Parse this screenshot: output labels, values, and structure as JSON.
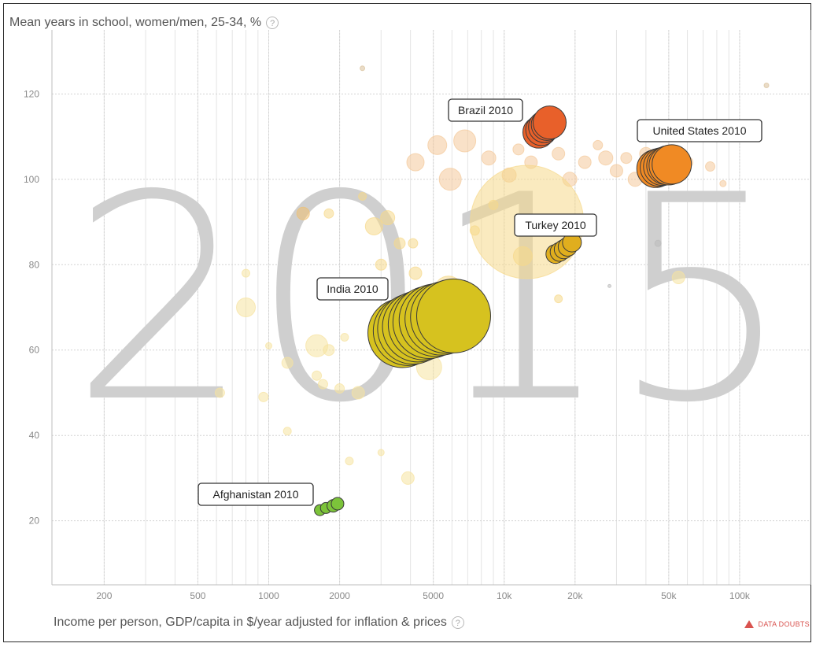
{
  "ui": {
    "y_title": "Mean years in school, women/men, 25-34, %",
    "x_title": "Income per person, GDP/capita in $/year adjusted for inflation & prices",
    "help_glyph": "?",
    "data_doubts": "DATA DOUBTS",
    "year": "2015"
  },
  "chart_data": {
    "type": "scatter",
    "xlabel": "Income per person, GDP/capita in $/year adjusted for inflation & prices",
    "ylabel": "Mean years in school, women/men, 25-34, %",
    "x_scale": "log",
    "xlim": [
      120,
      200000
    ],
    "ylim": [
      5,
      135
    ],
    "x_ticks": [
      {
        "value": 200,
        "label": "200"
      },
      {
        "value": 500,
        "label": "500"
      },
      {
        "value": 1000,
        "label": "1000"
      },
      {
        "value": 2000,
        "label": "2000"
      },
      {
        "value": 5000,
        "label": "5000"
      },
      {
        "value": 10000,
        "label": "10k"
      },
      {
        "value": 20000,
        "label": "20k"
      },
      {
        "value": 50000,
        "label": "50k"
      },
      {
        "value": 100000,
        "label": "100k"
      }
    ],
    "y_ticks": [
      {
        "value": 20,
        "label": "20"
      },
      {
        "value": 40,
        "label": "40"
      },
      {
        "value": 60,
        "label": "60"
      },
      {
        "value": 80,
        "label": "80"
      },
      {
        "value": 100,
        "label": "100"
      },
      {
        "value": 120,
        "label": "120"
      }
    ],
    "grid": true,
    "highlighted": [
      {
        "label": "Brazil 2010",
        "color": "#e8602a",
        "points": [
          {
            "x": 14000,
            "y": 111,
            "size": 20
          },
          {
            "x": 14400,
            "y": 111.6,
            "size": 20
          },
          {
            "x": 14800,
            "y": 112.3,
            "size": 20
          },
          {
            "x": 15200,
            "y": 112.8,
            "size": 20
          },
          {
            "x": 15600,
            "y": 113.3,
            "size": 21
          }
        ]
      },
      {
        "label": "United States 2010",
        "color": "#f08a24",
        "points": [
          {
            "x": 44000,
            "y": 102.5,
            "size": 24
          },
          {
            "x": 45500,
            "y": 102.8,
            "size": 24
          },
          {
            "x": 47000,
            "y": 103,
            "size": 24
          },
          {
            "x": 48500,
            "y": 103.2,
            "size": 24
          },
          {
            "x": 50000,
            "y": 103.3,
            "size": 25
          },
          {
            "x": 51500,
            "y": 103.5,
            "size": 25
          }
        ]
      },
      {
        "label": "Turkey 2010",
        "color": "#e0ae1e",
        "points": [
          {
            "x": 16500,
            "y": 82.5,
            "size": 12
          },
          {
            "x": 17200,
            "y": 83,
            "size": 12
          },
          {
            "x": 17900,
            "y": 83.6,
            "size": 12
          },
          {
            "x": 18600,
            "y": 84.2,
            "size": 12
          },
          {
            "x": 19400,
            "y": 85.2,
            "size": 12
          }
        ]
      },
      {
        "label": "India 2010",
        "color": "#d6c21f",
        "points": [
          {
            "x": 3700,
            "y": 64,
            "size": 44
          },
          {
            "x": 3900,
            "y": 64.5,
            "size": 44
          },
          {
            "x": 4100,
            "y": 65,
            "size": 45
          },
          {
            "x": 4300,
            "y": 65.5,
            "size": 45
          },
          {
            "x": 4550,
            "y": 66,
            "size": 45
          },
          {
            "x": 4800,
            "y": 66.5,
            "size": 46
          },
          {
            "x": 5100,
            "y": 67,
            "size": 46
          },
          {
            "x": 5400,
            "y": 67.3,
            "size": 46
          },
          {
            "x": 5700,
            "y": 67.7,
            "size": 46
          },
          {
            "x": 6100,
            "y": 68,
            "size": 47
          }
        ]
      },
      {
        "label": "Afghanistan 2010",
        "color": "#7cc33a",
        "points": [
          {
            "x": 1650,
            "y": 22.5,
            "size": 7
          },
          {
            "x": 1750,
            "y": 23,
            "size": 7
          },
          {
            "x": 1880,
            "y": 23.5,
            "size": 8
          },
          {
            "x": 1960,
            "y": 24,
            "size": 8
          }
        ]
      }
    ],
    "other_countries": [
      {
        "x": 2500,
        "y": 126,
        "size": 3,
        "color": "#d9c09a"
      },
      {
        "x": 130000,
        "y": 122,
        "size": 3,
        "color": "#d9c09a"
      },
      {
        "x": 5200,
        "y": 108,
        "size": 12,
        "color": "#f4c99a"
      },
      {
        "x": 6800,
        "y": 109,
        "size": 14,
        "color": "#f4c99a"
      },
      {
        "x": 4200,
        "y": 104,
        "size": 11,
        "color": "#f4c99a"
      },
      {
        "x": 5900,
        "y": 100,
        "size": 14,
        "color": "#f4c99a"
      },
      {
        "x": 8600,
        "y": 105,
        "size": 9,
        "color": "#f4c99a"
      },
      {
        "x": 10500,
        "y": 101,
        "size": 9,
        "color": "#f4c99a"
      },
      {
        "x": 11500,
        "y": 107,
        "size": 7,
        "color": "#f4c99a"
      },
      {
        "x": 13000,
        "y": 104,
        "size": 8,
        "color": "#f4c99a"
      },
      {
        "x": 17000,
        "y": 106,
        "size": 8,
        "color": "#f4c99a"
      },
      {
        "x": 19000,
        "y": 100,
        "size": 9,
        "color": "#f4c99a"
      },
      {
        "x": 22000,
        "y": 104,
        "size": 8,
        "color": "#f4c99a"
      },
      {
        "x": 25000,
        "y": 108,
        "size": 6,
        "color": "#f4c99a"
      },
      {
        "x": 27000,
        "y": 105,
        "size": 9,
        "color": "#f4c99a"
      },
      {
        "x": 30000,
        "y": 102,
        "size": 8,
        "color": "#f4c99a"
      },
      {
        "x": 33000,
        "y": 105,
        "size": 7,
        "color": "#f4c99a"
      },
      {
        "x": 36000,
        "y": 100,
        "size": 9,
        "color": "#f4c99a"
      },
      {
        "x": 40000,
        "y": 106,
        "size": 8,
        "color": "#f4c99a"
      },
      {
        "x": 60000,
        "y": 104,
        "size": 7,
        "color": "#f4c99a"
      },
      {
        "x": 75000,
        "y": 103,
        "size": 6,
        "color": "#f4c99a"
      },
      {
        "x": 85000,
        "y": 99,
        "size": 4,
        "color": "#f4c99a"
      },
      {
        "x": 12500,
        "y": 90,
        "size": 72,
        "color": "#f6d98a"
      },
      {
        "x": 12000,
        "y": 82,
        "size": 12,
        "color": "#f6d98a"
      },
      {
        "x": 9000,
        "y": 94,
        "size": 6,
        "color": "#f6d98a"
      },
      {
        "x": 7500,
        "y": 88,
        "size": 6,
        "color": "#f6d98a"
      },
      {
        "x": 2800,
        "y": 89,
        "size": 11,
        "color": "#f6d98a"
      },
      {
        "x": 3200,
        "y": 91,
        "size": 9,
        "color": "#f6d98a"
      },
      {
        "x": 2500,
        "y": 96,
        "size": 5,
        "color": "#f6d98a"
      },
      {
        "x": 1400,
        "y": 92,
        "size": 8,
        "color": "#f0c070"
      },
      {
        "x": 1800,
        "y": 92,
        "size": 6,
        "color": "#f6d98a"
      },
      {
        "x": 3600,
        "y": 85,
        "size": 7,
        "color": "#f6d98a"
      },
      {
        "x": 4100,
        "y": 85,
        "size": 6,
        "color": "#f6d98a"
      },
      {
        "x": 3000,
        "y": 80,
        "size": 7,
        "color": "#f6d98a"
      },
      {
        "x": 4200,
        "y": 78,
        "size": 8,
        "color": "#f6d98a"
      },
      {
        "x": 5800,
        "y": 74,
        "size": 18,
        "color": "#f6d98a"
      },
      {
        "x": 17000,
        "y": 72,
        "size": 5,
        "color": "#f6d98a"
      },
      {
        "x": 55000,
        "y": 77,
        "size": 8,
        "color": "#f6e3a0"
      },
      {
        "x": 800,
        "y": 78,
        "size": 5,
        "color": "#f6e3a0"
      },
      {
        "x": 800,
        "y": 70,
        "size": 12,
        "color": "#f6e3a0"
      },
      {
        "x": 1600,
        "y": 61,
        "size": 14,
        "color": "#f6e3a0"
      },
      {
        "x": 1000,
        "y": 61,
        "size": 4,
        "color": "#f6e3a0"
      },
      {
        "x": 1200,
        "y": 57,
        "size": 7,
        "color": "#f6e3a0"
      },
      {
        "x": 1800,
        "y": 60,
        "size": 7,
        "color": "#f6e3a0"
      },
      {
        "x": 2100,
        "y": 63,
        "size": 5,
        "color": "#f6e3a0"
      },
      {
        "x": 1600,
        "y": 54,
        "size": 6,
        "color": "#f6e3a0"
      },
      {
        "x": 1700,
        "y": 52,
        "size": 6,
        "color": "#f6e3a0"
      },
      {
        "x": 2000,
        "y": 51,
        "size": 6,
        "color": "#f6e3a0"
      },
      {
        "x": 2400,
        "y": 50,
        "size": 8,
        "color": "#f6e3a0"
      },
      {
        "x": 4800,
        "y": 56,
        "size": 16,
        "color": "#f6e3a0"
      },
      {
        "x": 620,
        "y": 50,
        "size": 6,
        "color": "#f6e3a0"
      },
      {
        "x": 950,
        "y": 49,
        "size": 6,
        "color": "#f6e3a0"
      },
      {
        "x": 1200,
        "y": 41,
        "size": 5,
        "color": "#f6e3a0"
      },
      {
        "x": 2200,
        "y": 34,
        "size": 5,
        "color": "#f6e3a0"
      },
      {
        "x": 3000,
        "y": 36,
        "size": 4,
        "color": "#f6e3a0"
      },
      {
        "x": 3900,
        "y": 30,
        "size": 8,
        "color": "#f6e3a0"
      },
      {
        "x": 45000,
        "y": 85,
        "size": 4,
        "color": "#bbbbbb"
      },
      {
        "x": 28000,
        "y": 75,
        "size": 2,
        "color": "#bbbbbb"
      }
    ]
  }
}
